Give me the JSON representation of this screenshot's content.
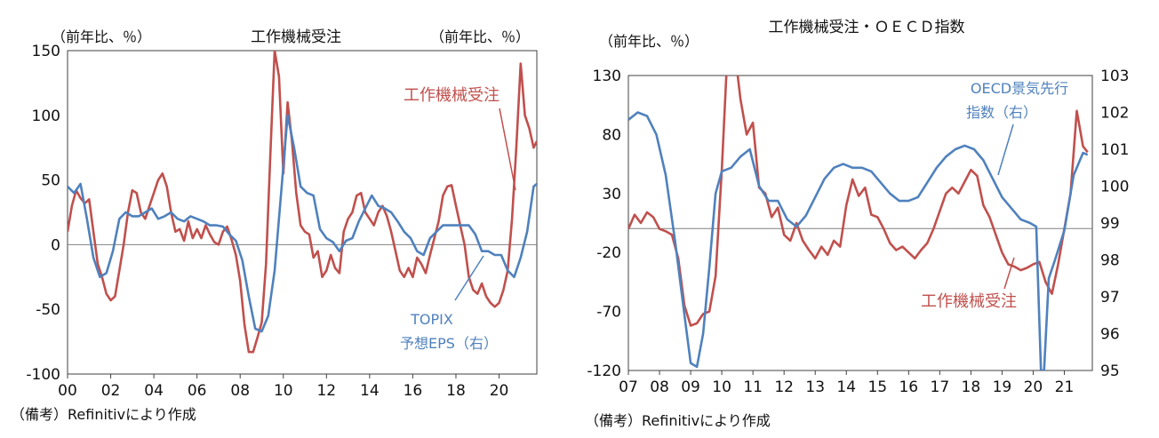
{
  "chart_data": [
    {
      "type": "line",
      "title": "工作機械受注",
      "unit_left": "（前年比、％）",
      "unit_right": "（前年比、％）",
      "note": "（備考）Refinitivにより作成",
      "x_tick_labels": [
        "00",
        "02",
        "04",
        "06",
        "08",
        "10",
        "12",
        "14",
        "16",
        "18",
        "20"
      ],
      "xlim": [
        2000.0,
        2021.75
      ],
      "y_ticks": [
        -100,
        -50,
        0,
        50,
        100,
        150
      ],
      "ylim": [
        -100,
        150
      ],
      "zero_line": 0,
      "series": [
        {
          "name": "工作機械受注",
          "color": "#c0504d",
          "x": [
            2000.0,
            2000.2,
            2000.4,
            2000.6,
            2000.8,
            2001.0,
            2001.2,
            2001.4,
            2001.6,
            2001.8,
            2002.0,
            2002.2,
            2002.4,
            2002.6,
            2002.8,
            2003.0,
            2003.2,
            2003.4,
            2003.6,
            2003.8,
            2004.0,
            2004.2,
            2004.4,
            2004.6,
            2004.8,
            2005.0,
            2005.2,
            2005.4,
            2005.6,
            2005.8,
            2006.0,
            2006.2,
            2006.4,
            2006.6,
            2006.8,
            2007.0,
            2007.2,
            2007.4,
            2007.6,
            2007.8,
            2008.0,
            2008.2,
            2008.4,
            2008.6,
            2008.8,
            2009.0,
            2009.2,
            2009.4,
            2009.6,
            2009.8,
            2010.0,
            2010.2,
            2010.4,
            2010.6,
            2010.8,
            2011.0,
            2011.2,
            2011.4,
            2011.6,
            2011.8,
            2012.0,
            2012.2,
            2012.4,
            2012.6,
            2012.8,
            2013.0,
            2013.2,
            2013.4,
            2013.6,
            2013.8,
            2014.0,
            2014.2,
            2014.4,
            2014.6,
            2014.8,
            2015.0,
            2015.2,
            2015.4,
            2015.6,
            2015.8,
            2016.0,
            2016.2,
            2016.4,
            2016.6,
            2016.8,
            2017.0,
            2017.2,
            2017.4,
            2017.6,
            2017.8,
            2018.0,
            2018.2,
            2018.4,
            2018.6,
            2018.8,
            2019.0,
            2019.2,
            2019.4,
            2019.6,
            2019.8,
            2020.0,
            2020.2,
            2020.4,
            2020.6,
            2020.8,
            2021.0,
            2021.2,
            2021.4,
            2021.6,
            2021.75
          ],
          "values": [
            10,
            30,
            42,
            36,
            32,
            35,
            10,
            -15,
            -25,
            -38,
            -43,
            -40,
            -20,
            0,
            25,
            42,
            40,
            25,
            20,
            30,
            40,
            50,
            55,
            45,
            25,
            10,
            12,
            3,
            18,
            5,
            12,
            5,
            15,
            8,
            2,
            0,
            10,
            14,
            4,
            -8,
            -28,
            -62,
            -83,
            -83,
            -72,
            -60,
            -15,
            70,
            150,
            130,
            55,
            110,
            80,
            40,
            15,
            10,
            8,
            -10,
            -5,
            -25,
            -20,
            -8,
            -18,
            -22,
            10,
            20,
            25,
            38,
            40,
            25,
            20,
            15,
            25,
            30,
            22,
            10,
            -5,
            -20,
            -25,
            -18,
            -25,
            -10,
            -15,
            -22,
            -8,
            5,
            18,
            38,
            45,
            46,
            30,
            15,
            0,
            -25,
            -35,
            -38,
            -30,
            -40,
            -45,
            -48,
            -45,
            -35,
            -20,
            20,
            75,
            140,
            100,
            90,
            75,
            80
          ]
        },
        {
          "name": "TOPIX\n予想EPS（右）",
          "color": "#4f81bd",
          "x": [
            2000.0,
            2000.3,
            2000.6,
            2000.9,
            2001.2,
            2001.5,
            2001.8,
            2002.1,
            2002.4,
            2002.7,
            2003.0,
            2003.3,
            2003.6,
            2003.9,
            2004.2,
            2004.5,
            2004.8,
            2005.1,
            2005.4,
            2005.7,
            2006.0,
            2006.3,
            2006.6,
            2006.9,
            2007.2,
            2007.5,
            2007.8,
            2008.1,
            2008.4,
            2008.7,
            2009.0,
            2009.3,
            2009.6,
            2009.9,
            2010.2,
            2010.5,
            2010.8,
            2011.1,
            2011.4,
            2011.7,
            2012.0,
            2012.3,
            2012.6,
            2012.9,
            2013.2,
            2013.5,
            2013.8,
            2014.1,
            2014.4,
            2014.7,
            2015.0,
            2015.3,
            2015.6,
            2015.9,
            2016.2,
            2016.5,
            2016.8,
            2017.1,
            2017.4,
            2017.7,
            2018.0,
            2018.3,
            2018.6,
            2018.9,
            2019.2,
            2019.5,
            2019.8,
            2020.1,
            2020.4,
            2020.7,
            2021.0,
            2021.3,
            2021.6,
            2021.75
          ],
          "values": [
            45,
            40,
            47,
            20,
            -10,
            -25,
            -22,
            -5,
            20,
            25,
            22,
            22,
            25,
            28,
            20,
            22,
            25,
            20,
            18,
            22,
            20,
            18,
            15,
            15,
            14,
            8,
            3,
            -12,
            -40,
            -65,
            -67,
            -55,
            -20,
            40,
            100,
            75,
            45,
            40,
            38,
            12,
            5,
            2,
            -5,
            3,
            5,
            18,
            28,
            38,
            30,
            28,
            25,
            18,
            10,
            5,
            -5,
            -8,
            5,
            10,
            15,
            15,
            15,
            15,
            15,
            8,
            -5,
            -5,
            -8,
            -8,
            -20,
            -25,
            -10,
            10,
            45,
            47
          ]
        }
      ],
      "annotations": [
        "工作機械受注",
        "TOPIX",
        "予想EPS（右）"
      ]
    },
    {
      "type": "line",
      "title": "工作機械受注・ＯＥＣＤ指数",
      "unit_left": "（前年比、％）",
      "note": "（備考）Refinitivにより作成",
      "x_tick_labels": [
        "07",
        "08",
        "09",
        "10",
        "11",
        "12",
        "13",
        "14",
        "15",
        "16",
        "17",
        "18",
        "19",
        "20",
        "21"
      ],
      "xlim": [
        2007.0,
        2021.9
      ],
      "y_left_ticks": [
        -120,
        -70,
        -20,
        30,
        80,
        130
      ],
      "ylim_left": [
        -120,
        130
      ],
      "y_right_ticks": [
        95,
        96,
        97,
        98,
        99,
        100,
        101,
        102,
        103
      ],
      "ylim_right": [
        95,
        103
      ],
      "ref_line_right": 98.85,
      "series": [
        {
          "name": "工作機械受注",
          "axis": "left",
          "color": "#c0504d",
          "x": [
            2007.0,
            2007.2,
            2007.4,
            2007.6,
            2007.8,
            2008.0,
            2008.2,
            2008.4,
            2008.6,
            2008.8,
            2009.0,
            2009.2,
            2009.4,
            2009.6,
            2009.8,
            2010.0,
            2010.2,
            2010.4,
            2010.6,
            2010.8,
            2011.0,
            2011.2,
            2011.4,
            2011.6,
            2011.8,
            2012.0,
            2012.2,
            2012.4,
            2012.6,
            2012.8,
            2013.0,
            2013.2,
            2013.4,
            2013.6,
            2013.8,
            2014.0,
            2014.2,
            2014.4,
            2014.6,
            2014.8,
            2015.0,
            2015.2,
            2015.4,
            2015.6,
            2015.8,
            2016.0,
            2016.2,
            2016.4,
            2016.6,
            2016.8,
            2017.0,
            2017.2,
            2017.4,
            2017.6,
            2017.8,
            2018.0,
            2018.2,
            2018.4,
            2018.6,
            2018.8,
            2019.0,
            2019.2,
            2019.4,
            2019.6,
            2019.8,
            2020.0,
            2020.2,
            2020.4,
            2020.6,
            2020.8,
            2021.0,
            2021.2,
            2021.4,
            2021.6,
            2021.75
          ],
          "values": [
            0,
            12,
            5,
            14,
            10,
            0,
            -2,
            -5,
            -25,
            -65,
            -82,
            -80,
            -72,
            -70,
            -40,
            50,
            160,
            155,
            110,
            80,
            90,
            35,
            30,
            10,
            18,
            -5,
            -10,
            5,
            -10,
            -18,
            -25,
            -15,
            -22,
            -10,
            -15,
            20,
            42,
            28,
            35,
            12,
            10,
            0,
            -12,
            -18,
            -15,
            -20,
            -25,
            -18,
            -12,
            0,
            15,
            30,
            35,
            30,
            40,
            50,
            45,
            20,
            10,
            -5,
            -20,
            -30,
            -32,
            -35,
            -33,
            -30,
            -28,
            -45,
            -55,
            -30,
            0,
            30,
            100,
            70,
            65
          ]
        },
        {
          "name": "OECD景気先行\n指数（右）",
          "axis": "right",
          "color": "#4f81bd",
          "x": [
            2007.0,
            2007.3,
            2007.6,
            2007.9,
            2008.2,
            2008.5,
            2008.8,
            2009.0,
            2009.2,
            2009.4,
            2009.6,
            2009.8,
            2010.0,
            2010.3,
            2010.6,
            2010.9,
            2011.2,
            2011.5,
            2011.8,
            2012.1,
            2012.4,
            2012.7,
            2013.0,
            2013.3,
            2013.6,
            2013.9,
            2014.2,
            2014.5,
            2014.8,
            2015.1,
            2015.4,
            2015.7,
            2016.0,
            2016.3,
            2016.6,
            2016.9,
            2017.2,
            2017.5,
            2017.8,
            2018.1,
            2018.4,
            2018.7,
            2019.0,
            2019.3,
            2019.6,
            2019.9,
            2020.1,
            2020.25,
            2020.35,
            2020.5,
            2020.7,
            2021.0,
            2021.3,
            2021.6,
            2021.75
          ],
          "values": [
            101.8,
            102.0,
            101.9,
            101.4,
            100.3,
            98.5,
            96.5,
            95.2,
            95.1,
            96.0,
            97.8,
            99.8,
            100.4,
            100.5,
            100.8,
            101.0,
            100.0,
            99.6,
            99.6,
            99.1,
            98.9,
            99.2,
            99.7,
            100.2,
            100.5,
            100.6,
            100.5,
            100.5,
            100.4,
            100.1,
            99.8,
            99.6,
            99.6,
            99.7,
            100.1,
            100.5,
            100.8,
            101.0,
            101.1,
            101.0,
            100.7,
            100.2,
            99.7,
            99.4,
            99.1,
            99.0,
            98.9,
            95.0,
            95.0,
            97.5,
            98.0,
            98.8,
            100.3,
            100.9,
            100.85
          ]
        }
      ],
      "annotations": [
        "OECD景気先行",
        "指数（右）",
        "工作機械受注"
      ]
    }
  ]
}
